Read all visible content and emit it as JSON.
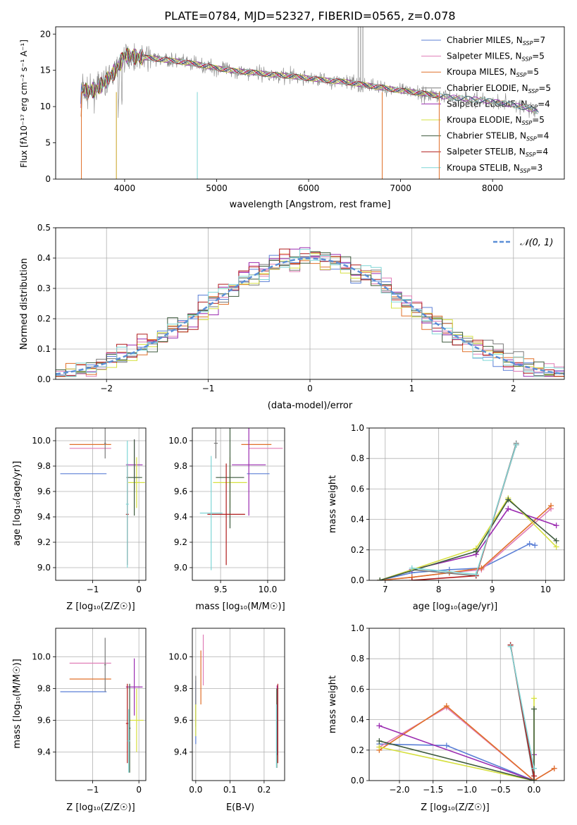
{
  "figure": {
    "title": "PLATE=0784, MJD=52327, FIBERID=0565, z=0.078"
  },
  "colors": {
    "Chabrier MILES": "#5b7fd6",
    "Salpeter MILES": "#e07db6",
    "Kroupa MILES": "#e0702a",
    "Chabrier ELODIE": "#7a7a7a",
    "Salpeter ELODIE": "#9a2bb0",
    "Kroupa ELODIE": "#d6e040",
    "Chabrier STELIB": "#3d5a3d",
    "Salpeter STELIB": "#b01c1c",
    "Kroupa STELIB": "#7fd6d6",
    "normal_curve": "#5b8fd6"
  },
  "chart_data": [
    {
      "id": "spectrum",
      "type": "line",
      "title": "PLATE=0784, MJD=52327, FIBERID=0565, z=0.078",
      "xlabel": "wavelength [Angstrom, rest frame]",
      "ylabel": "Flux [fλ10⁻¹⁷ erg cm⁻² s⁻¹ A⁻¹]",
      "xlim": [
        3250,
        8780
      ],
      "ylim": [
        0,
        21
      ],
      "xticks": [
        4000,
        5000,
        6000,
        7000,
        8000
      ],
      "yticks": [
        0,
        5,
        10,
        15,
        20
      ],
      "legend_position": "top-right",
      "legend": [
        {
          "model": "Chabrier MILES",
          "label": "Chabrier MILES, N",
          "sub": "SSP",
          "n": "=7"
        },
        {
          "model": "Salpeter MILES",
          "label": "Salpeter MILES, N",
          "sub": "SSP",
          "n": "=5"
        },
        {
          "model": "Kroupa MILES",
          "label": "Kroupa MILES, N",
          "sub": "SSP",
          "n": "=5"
        },
        {
          "model": "Chabrier ELODIE",
          "label": "Chabrier ELODIE, N",
          "sub": "SSP",
          "n": "=5"
        },
        {
          "model": "Salpeter ELODIE",
          "label": "Salpeter ELODIE, N",
          "sub": "SSP",
          "n": "=4"
        },
        {
          "model": "Kroupa ELODIE",
          "label": "Kroupa ELODIE, N",
          "sub": "SSP",
          "n": "=5"
        },
        {
          "model": "Chabrier STELIB",
          "label": "Chabrier STELIB, N",
          "sub": "SSP",
          "n": "=4"
        },
        {
          "model": "Salpeter STELIB",
          "label": "Salpeter STELIB, N",
          "sub": "SSP",
          "n": "=4"
        },
        {
          "model": "Kroupa STELIB",
          "label": "Kroupa STELIB, N",
          "sub": "SSP",
          "n": "=3"
        }
      ],
      "continuum": {
        "x": [
          3530,
          3600,
          3700,
          3800,
          3900,
          4000,
          4200,
          4400,
          4600,
          4800,
          5000,
          5200,
          5400,
          5600,
          5800,
          6000,
          6200,
          6400,
          6600,
          6800,
          7000,
          7200,
          7400,
          7600,
          7800,
          8000,
          8200,
          8400,
          8500
        ],
        "y": [
          12.5,
          12.0,
          12.5,
          13.5,
          15.0,
          17.0,
          16.8,
          16.5,
          16.2,
          15.8,
          15.3,
          14.9,
          14.7,
          14.4,
          14.2,
          13.9,
          13.6,
          13.4,
          13.0,
          12.6,
          12.2,
          11.9,
          11.5,
          11.2,
          11.0,
          10.7,
          10.3,
          9.7,
          9.3
        ]
      }
    },
    {
      "id": "residuals",
      "type": "line",
      "xlabel": "(data-model)/error",
      "ylabel": "Normed distribution",
      "xlim": [
        -2.5,
        2.5
      ],
      "ylim": [
        0,
        0.5
      ],
      "xticks": [
        -2,
        -1,
        0,
        1,
        2
      ],
      "yticks": [
        0.0,
        0.1,
        0.2,
        0.3,
        0.4,
        0.5
      ],
      "legend_position": "top-right",
      "legend": [
        {
          "label": "𝒩(0, 1)",
          "style": "dashed"
        }
      ],
      "bin_width": 0.1,
      "bins_from": -2.5
    },
    {
      "id": "age-vs-Z",
      "type": "scatter",
      "xlabel": "Z [log₁₀(Z/Z☉)]",
      "ylabel": "age  [log₁₀(age/yr)]",
      "xlim": [
        -1.8,
        0.15
      ],
      "ylim": [
        8.9,
        10.1
      ],
      "xticks": [
        -1,
        0
      ],
      "yticks": [
        9.0,
        9.2,
        9.4,
        9.6,
        9.8,
        10.0
      ],
      "points": [
        {
          "model": "Chabrier MILES",
          "x": -1.2,
          "xerr": 0.5,
          "y": 9.74,
          "yerr": 0.0
        },
        {
          "model": "Salpeter MILES",
          "x": -1.05,
          "xerr": 0.45,
          "y": 9.94,
          "yerr": 0.0
        },
        {
          "model": "Kroupa MILES",
          "x": -1.05,
          "xerr": 0.45,
          "y": 9.97,
          "yerr": 0.0
        },
        {
          "model": "Chabrier ELODIE",
          "x": -0.73,
          "xerr": 0.02,
          "y": 9.98,
          "yerr": 0.12
        },
        {
          "model": "Salpeter ELODIE",
          "x": -0.1,
          "xerr": 0.18,
          "y": 9.81,
          "yerr": 0.2
        },
        {
          "model": "Kroupa ELODIE",
          "x": -0.05,
          "xerr": 0.18,
          "y": 9.67,
          "yerr": 0.2
        },
        {
          "model": "Chabrier STELIB",
          "x": -0.1,
          "xerr": 0.17,
          "y": 9.71,
          "yerr": 0.3
        },
        {
          "model": "Salpeter STELIB",
          "x": -0.25,
          "xerr": 0.03,
          "y": 9.42,
          "yerr": 0.4
        },
        {
          "model": "Kroupa STELIB",
          "x": -0.25,
          "xerr": 0.03,
          "y": 9.5,
          "yerr": 0.5
        }
      ]
    },
    {
      "id": "age-vs-mass",
      "type": "scatter",
      "xlabel": "mass [log₁₀(M/M☉)]",
      "ylabel": "",
      "xlim": [
        9.2,
        10.18
      ],
      "ylim": [
        8.9,
        10.1
      ],
      "xticks": [
        9.5,
        10.0
      ],
      "yticks": [
        9.0,
        9.2,
        9.4,
        9.6,
        9.8,
        10.0
      ],
      "points": [
        {
          "model": "Chabrier MILES",
          "x": 9.9,
          "xerr": 0.12,
          "y": 9.74,
          "yerr": 0.0
        },
        {
          "model": "Salpeter MILES",
          "x": 9.98,
          "xerr": 0.18,
          "y": 9.94,
          "yerr": 0.0
        },
        {
          "model": "Kroupa MILES",
          "x": 9.88,
          "xerr": 0.16,
          "y": 9.97,
          "yerr": 0.0
        },
        {
          "model": "Chabrier ELODIE",
          "x": 9.45,
          "xerr": 0.02,
          "y": 9.98,
          "yerr": 0.12
        },
        {
          "model": "Salpeter ELODIE",
          "x": 9.8,
          "xerr": 0.18,
          "y": 9.81,
          "yerr": 0.4
        },
        {
          "model": "Kroupa ELODIE",
          "x": 9.6,
          "xerr": 0.18,
          "y": 9.67,
          "yerr": 0.2
        },
        {
          "model": "Chabrier STELIB",
          "x": 9.6,
          "xerr": 0.15,
          "y": 9.71,
          "yerr": 0.4
        },
        {
          "model": "Salpeter STELIB",
          "x": 9.56,
          "xerr": 0.2,
          "y": 9.42,
          "yerr": 0.4
        },
        {
          "model": "Kroupa STELIB",
          "x": 9.4,
          "xerr": 0.12,
          "y": 9.43,
          "yerr": 0.45
        }
      ]
    },
    {
      "id": "weight-vs-age",
      "type": "line",
      "xlabel": "age  [log₁₀(age/yr)]",
      "ylabel": "mass weight",
      "xlim": [
        6.7,
        10.35
      ],
      "ylim": [
        0,
        1.0
      ],
      "xticks": [
        7,
        8,
        9,
        10
      ],
      "yticks": [
        0.0,
        0.2,
        0.4,
        0.6,
        0.8,
        1.0
      ],
      "series": [
        {
          "model": "Chabrier MILES",
          "x": [
            6.9,
            7.5,
            8.2,
            8.8,
            9.7,
            9.8
          ],
          "y": [
            0.0,
            0.05,
            0.07,
            0.08,
            0.24,
            0.23
          ]
        },
        {
          "model": "Salpeter MILES",
          "x": [
            6.9,
            7.5,
            8.2,
            8.8,
            10.1
          ],
          "y": [
            0.0,
            0.02,
            0.05,
            0.07,
            0.47
          ]
        },
        {
          "model": "Kroupa MILES",
          "x": [
            6.9,
            7.5,
            8.2,
            8.8,
            10.1
          ],
          "y": [
            0.0,
            0.02,
            0.05,
            0.08,
            0.49
          ]
        },
        {
          "model": "Chabrier ELODIE",
          "x": [
            6.9,
            7.5,
            8.7,
            9.45
          ],
          "y": [
            0.0,
            0.07,
            0.03,
            0.9
          ]
        },
        {
          "model": "Salpeter ELODIE",
          "x": [
            7.5,
            8.7,
            9.3,
            10.2
          ],
          "y": [
            0.07,
            0.17,
            0.47,
            0.36
          ]
        },
        {
          "model": "Kroupa ELODIE",
          "x": [
            6.9,
            8.7,
            9.3,
            10.2
          ],
          "y": [
            0.0,
            0.21,
            0.54,
            0.22
          ]
        },
        {
          "model": "Chabrier STELIB",
          "x": [
            6.9,
            8.7,
            9.3,
            10.2
          ],
          "y": [
            0.0,
            0.19,
            0.53,
            0.26
          ]
        },
        {
          "model": "Salpeter STELIB",
          "x": [
            7.5,
            8.7,
            9.45
          ],
          "y": [
            0.0,
            0.03,
            0.89
          ]
        },
        {
          "model": "Kroupa STELIB",
          "x": [
            7.5,
            8.7,
            9.45
          ],
          "y": [
            0.08,
            0.04,
            0.89
          ]
        }
      ]
    },
    {
      "id": "mass-vs-Z",
      "type": "scatter",
      "xlabel": "Z [log₁₀(Z/Z☉)]",
      "ylabel": "mass [log₁₀(M/M☉)]",
      "xlim": [
        -1.8,
        0.15
      ],
      "ylim": [
        9.22,
        10.18
      ],
      "xticks": [
        -1,
        0
      ],
      "yticks": [
        9.4,
        9.6,
        9.8,
        10.0
      ],
      "points": [
        {
          "model": "Chabrier MILES",
          "x": -1.2,
          "xerr": 0.5,
          "y": 9.78,
          "yerr": 0.0
        },
        {
          "model": "Salpeter MILES",
          "x": -1.05,
          "xerr": 0.45,
          "y": 9.96,
          "yerr": 0.0
        },
        {
          "model": "Kroupa MILES",
          "x": -1.05,
          "xerr": 0.45,
          "y": 9.86,
          "yerr": 0.0
        },
        {
          "model": "Chabrier ELODIE",
          "x": -0.73,
          "xerr": 0.02,
          "y": 9.95,
          "yerr": 0.17
        },
        {
          "model": "Salpeter ELODIE",
          "x": -0.1,
          "xerr": 0.18,
          "y": 9.81,
          "yerr": 0.18
        },
        {
          "model": "Kroupa ELODIE",
          "x": -0.05,
          "xerr": 0.15,
          "y": 9.6,
          "yerr": 0.2
        },
        {
          "model": "Chabrier STELIB",
          "x": -0.2,
          "xerr": 0.02,
          "y": 9.55,
          "yerr": 0.28
        },
        {
          "model": "Salpeter STELIB",
          "x": -0.25,
          "xerr": 0.03,
          "y": 9.58,
          "yerr": 0.25
        },
        {
          "model": "Kroupa STELIB",
          "x": -0.22,
          "xerr": 0.03,
          "y": 9.47,
          "yerr": 0.2
        }
      ]
    },
    {
      "id": "mass-vs-ebv",
      "type": "scatter",
      "xlabel": "E(B-V)",
      "ylabel": "",
      "xlim": [
        -0.01,
        0.26
      ],
      "ylim": [
        9.22,
        10.18
      ],
      "xticks": [
        0.0,
        0.1,
        0.2
      ],
      "yticks": [
        9.4,
        9.6,
        9.8,
        10.0
      ],
      "points": [
        {
          "model": "Chabrier MILES",
          "x": 0.0,
          "xerr": 0.0,
          "y": 9.65,
          "yerr": 0.2
        },
        {
          "model": "Salpeter MILES",
          "x": 0.022,
          "xerr": 0.0,
          "y": 9.98,
          "yerr": 0.16
        },
        {
          "model": "Kroupa MILES",
          "x": 0.015,
          "xerr": 0.0,
          "y": 9.87,
          "yerr": 0.17
        },
        {
          "model": "Chabrier ELODIE",
          "x": 0.0,
          "xerr": 0.0,
          "y": 9.72,
          "yerr": 0.16
        },
        {
          "model": "Salpeter ELODIE",
          "x": 0.238,
          "xerr": 0.0,
          "y": 9.6,
          "yerr": 0.22
        },
        {
          "model": "Kroupa ELODIE",
          "x": 0.0,
          "xerr": 0.0,
          "y": 9.6,
          "yerr": 0.1
        },
        {
          "model": "Chabrier STELIB",
          "x": 0.237,
          "xerr": 0.0,
          "y": 9.55,
          "yerr": 0.25
        },
        {
          "model": "Salpeter STELIB",
          "x": 0.24,
          "xerr": 0.0,
          "y": 9.58,
          "yerr": 0.25
        },
        {
          "model": "Kroupa STELIB",
          "x": 0.236,
          "xerr": 0.0,
          "y": 9.5,
          "yerr": 0.2
        }
      ]
    },
    {
      "id": "weight-vs-Z",
      "type": "line",
      "xlabel": "Z [log₁₀(Z/Z☉)]",
      "ylabel": "mass weight",
      "xlim": [
        -2.45,
        0.45
      ],
      "ylim": [
        0,
        1.0
      ],
      "xticks": [
        -2.0,
        -1.5,
        -1.0,
        -0.5,
        0.0
      ],
      "yticks": [
        0.0,
        0.2,
        0.4,
        0.6,
        0.8,
        1.0
      ],
      "series": [
        {
          "model": "Chabrier MILES",
          "x": [
            -2.3,
            -1.3,
            0.0,
            0.0
          ],
          "y": [
            0.24,
            0.23,
            0.0,
            0.08
          ]
        },
        {
          "model": "Salpeter MILES",
          "x": [
            -2.3,
            -1.3,
            0.0,
            0.3
          ],
          "y": [
            0.22,
            0.48,
            0.0,
            0.08
          ]
        },
        {
          "model": "Kroupa MILES",
          "x": [
            -2.3,
            -1.3,
            0.0,
            0.3
          ],
          "y": [
            0.2,
            0.49,
            0.0,
            0.08
          ]
        },
        {
          "model": "Chabrier ELODIE",
          "x": [
            -0.35,
            0.0
          ],
          "y": [
            0.89,
            0.0
          ]
        },
        {
          "model": "Salpeter ELODIE",
          "x": [
            -2.3,
            0.0,
            0.0
          ],
          "y": [
            0.36,
            0.0,
            0.17
          ]
        },
        {
          "model": "Kroupa ELODIE",
          "x": [
            -2.3,
            0.0,
            0.0
          ],
          "y": [
            0.22,
            0.0,
            0.54
          ]
        },
        {
          "model": "Chabrier STELIB",
          "x": [
            -2.3,
            0.0,
            0.0
          ],
          "y": [
            0.26,
            0.0,
            0.47
          ]
        },
        {
          "model": "Salpeter STELIB",
          "x": [
            -0.35,
            0.0
          ],
          "y": [
            0.89,
            0.03
          ]
        },
        {
          "model": "Kroupa STELIB",
          "x": [
            -0.35,
            0.0
          ],
          "y": [
            0.88,
            0.08
          ]
        }
      ]
    }
  ]
}
